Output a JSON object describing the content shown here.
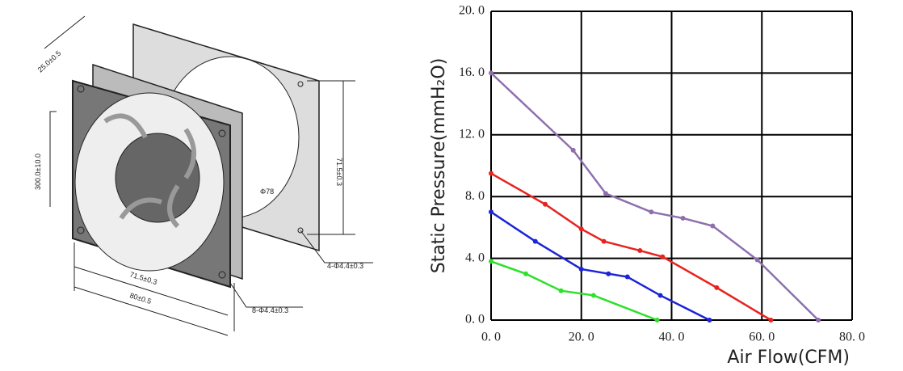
{
  "drawing": {
    "labels": [
      "25.0±0.5",
      "300.0±10.0",
      "Φ78",
      "71.5±0.3",
      "4-Φ4.4±0.3",
      "71.5±0.3",
      "80±0.5",
      "8-Φ4.4±0.3"
    ]
  },
  "chart_data": {
    "type": "line",
    "xlabel": "Air Flow(CFM)",
    "ylabel": "Static Pressure(mmH₂O)",
    "xlim": [
      0,
      80
    ],
    "ylim": [
      0,
      20
    ],
    "xticks": [
      {
        "value": 0,
        "label": "0. 0"
      },
      {
        "value": 20,
        "label": "20. 0"
      },
      {
        "value": 40,
        "label": "40. 0"
      },
      {
        "value": 60,
        "label": "60. 0"
      },
      {
        "value": 80,
        "label": "80. 0"
      }
    ],
    "yticks": [
      {
        "value": 0,
        "label": "0. 0"
      },
      {
        "value": 4,
        "label": "4. 0"
      },
      {
        "value": 8,
        "label": "8. 0"
      },
      {
        "value": 12,
        "label": "12. 0"
      },
      {
        "value": 16,
        "label": "16. 0"
      },
      {
        "value": 20,
        "label": "20. 0"
      }
    ],
    "grid": true,
    "series": [
      {
        "color": "#8e6fae",
        "x": [
          0,
          18.2,
          25.4,
          35.5,
          42.5,
          49.1,
          59,
          72.5
        ],
        "values": [
          16,
          11,
          8.2,
          7,
          6.6,
          6.1,
          3.9,
          0
        ]
      },
      {
        "color": "#e8231f",
        "x": [
          0,
          12,
          20,
          25,
          33,
          38,
          50,
          62
        ],
        "values": [
          9.5,
          7.5,
          5.9,
          5.1,
          4.5,
          4.1,
          2.1,
          0
        ]
      },
      {
        "color": "#1b24d6",
        "x": [
          0,
          9.8,
          20,
          26,
          30.2,
          37.5,
          48.4
        ],
        "values": [
          7,
          5.1,
          3.3,
          3,
          2.8,
          1.6,
          0
        ]
      },
      {
        "color": "#2ee02a",
        "x": [
          0,
          7.7,
          15.5,
          22.7,
          36.8
        ],
        "values": [
          3.8,
          3,
          1.9,
          1.6,
          0
        ]
      }
    ]
  }
}
